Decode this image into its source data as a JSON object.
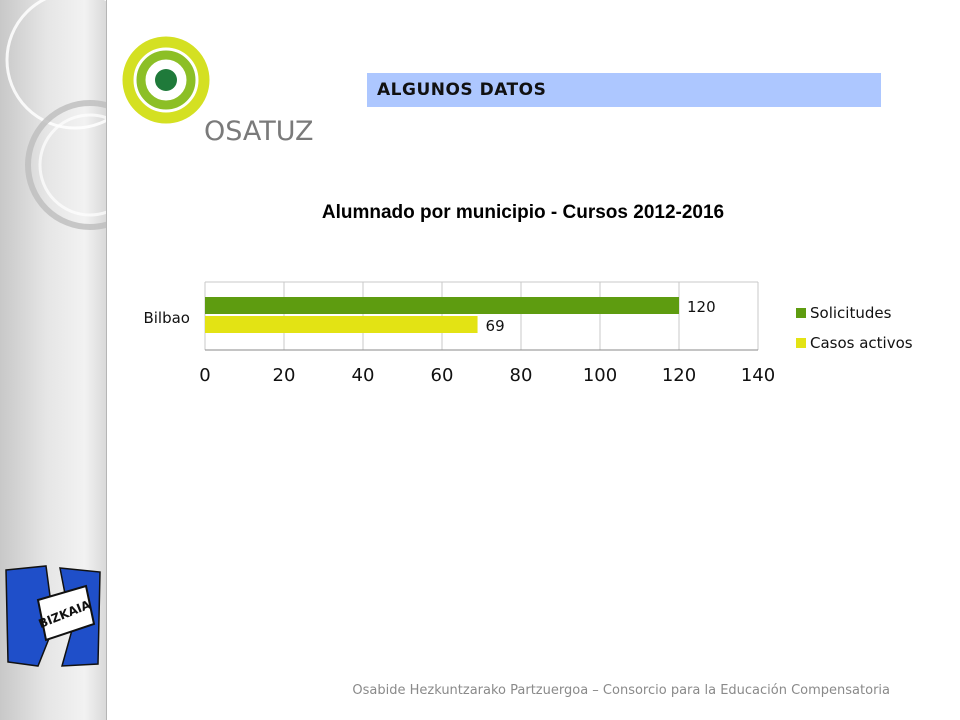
{
  "header": {
    "section_title": "ALGUNOS DATOS",
    "logo_text": "OSATUZ"
  },
  "branding": {
    "bizkaia_text": "BIZKAIA",
    "colors": {
      "accent_blue": "#adc7ff",
      "osatuz_green": "#8cbf26",
      "osatuz_yellow": "#d4e022",
      "bizkaia_blue": "#1f4fc9"
    }
  },
  "chart_data": {
    "type": "bar",
    "orientation": "horizontal",
    "title": "Alumnado por municipio - Cursos 2012-2016",
    "categories": [
      "Bilbao"
    ],
    "series": [
      {
        "name": "Solicitudes",
        "values": [
          120
        ],
        "color": "#5e9c10"
      },
      {
        "name": "Casos activos",
        "values": [
          69
        ],
        "color": "#e3e314"
      }
    ],
    "xlim": [
      0,
      140
    ],
    "x_ticks": [
      0,
      20,
      40,
      60,
      80,
      100,
      120,
      140
    ],
    "grid": true,
    "legend_position": "right",
    "data_labels": true
  },
  "footer": {
    "text": "Osabide Hezkuntzarako Partzuergoa – Consorcio para la Educación Compensatoria"
  }
}
